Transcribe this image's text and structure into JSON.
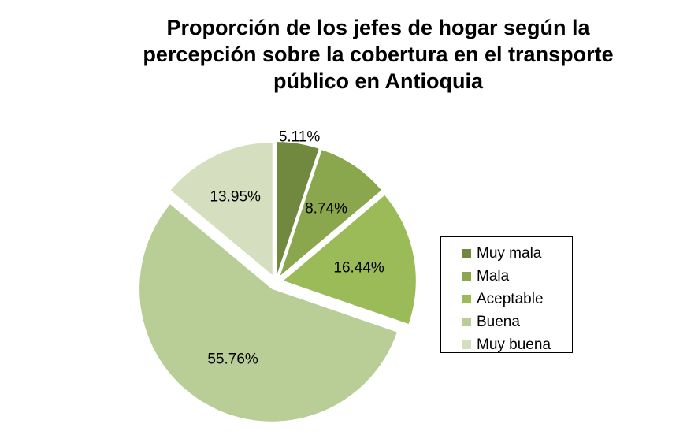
{
  "chart_data": {
    "type": "pie",
    "title_lines": [
      "Proporción de los jefes de hogar según la",
      "percepción sobre la cobertura en el transporte",
      "público en Antioquia"
    ],
    "categories": [
      "Muy mala",
      "Mala",
      "Aceptable",
      "Buena",
      "Muy buena"
    ],
    "values": [
      5.11,
      8.74,
      16.44,
      55.76,
      13.95
    ],
    "data_labels": [
      "5.11%",
      "8.74%",
      "16.44%",
      "55.76%",
      "13.95%"
    ],
    "colors": [
      "#71893f",
      "#8aa74e",
      "#9bbb59",
      "#b9cd96",
      "#d5dfc0"
    ],
    "exploded": [
      true,
      true,
      true,
      true,
      true
    ],
    "legend": {
      "position": "right",
      "items": [
        {
          "label": "Muy mala",
          "color": "#71893f"
        },
        {
          "label": "Mala",
          "color": "#8aa74e"
        },
        {
          "label": "Aceptable",
          "color": "#9bbb59"
        },
        {
          "label": "Buena",
          "color": "#b9cd96"
        },
        {
          "label": "Muy buena",
          "color": "#d5dfc0"
        }
      ]
    }
  }
}
